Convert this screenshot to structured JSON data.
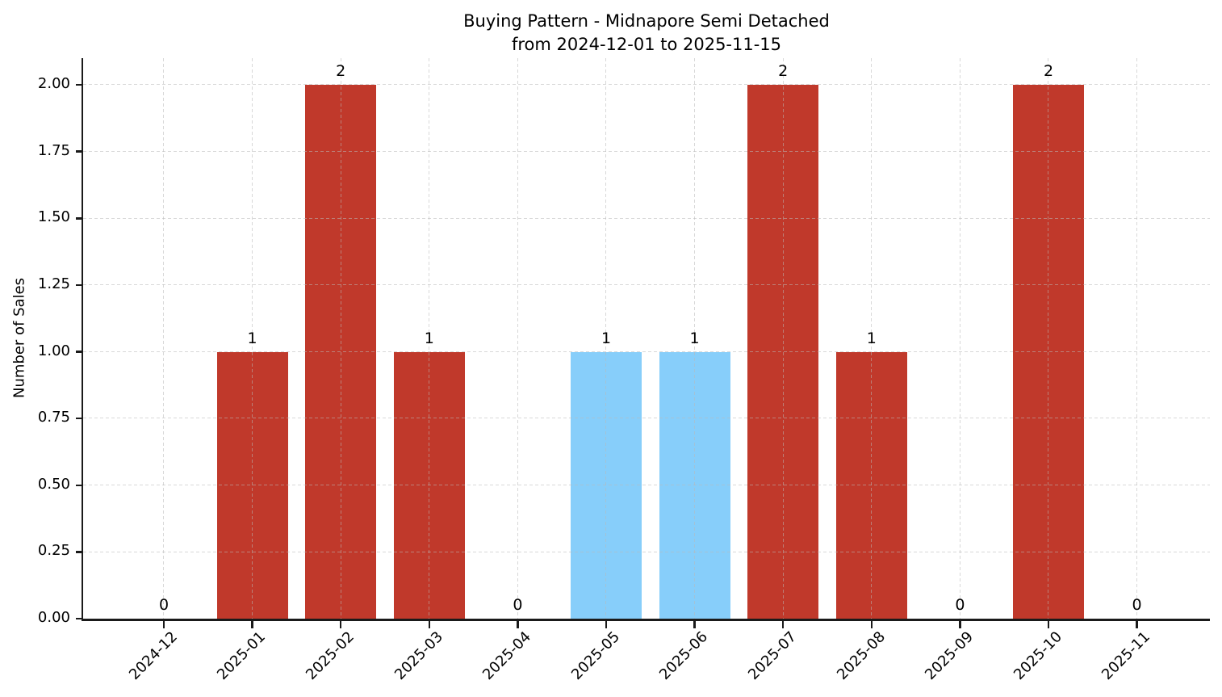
{
  "title": {
    "line1": "Buying Pattern - Midnapore Semi Detached",
    "line2": "from 2024-12-01 to 2025-11-15"
  },
  "chart_data": {
    "type": "bar",
    "title": "Buying Pattern - Midnapore Semi Detached\nfrom 2024-12-01 to 2025-11-15",
    "xlabel": "",
    "ylabel": "Number of Sales",
    "categories": [
      "2024-12",
      "2025-01",
      "2025-02",
      "2025-03",
      "2025-04",
      "2025-05",
      "2025-06",
      "2025-07",
      "2025-08",
      "2025-09",
      "2025-10",
      "2025-11"
    ],
    "values": [
      0,
      1,
      2,
      1,
      0,
      1,
      1,
      2,
      1,
      0,
      2,
      0
    ],
    "bar_labels": [
      "0",
      "1",
      "2",
      "1",
      "0",
      "1",
      "1",
      "2",
      "1",
      "0",
      "2",
      "0"
    ],
    "bar_colors": [
      "red",
      "red",
      "red",
      "red",
      "red",
      "blue",
      "blue",
      "red",
      "red",
      "red",
      "red",
      "red"
    ],
    "ylim": [
      0,
      2.1
    ],
    "yticks": [
      0.0,
      0.25,
      0.5,
      0.75,
      1.0,
      1.25,
      1.5,
      1.75,
      2.0
    ],
    "ytick_labels": [
      "0.00",
      "0.25",
      "0.50",
      "0.75",
      "1.00",
      "1.25",
      "1.50",
      "1.75",
      "2.00"
    ],
    "x_tick_rotation": 45,
    "grid": true,
    "legend": false
  },
  "colors": {
    "bar_red": "#c0392b",
    "bar_blue": "#87cefa",
    "grid": "#cccccc",
    "axis": "#1a1a1a",
    "background": "#ffffff",
    "text": "#000000"
  }
}
